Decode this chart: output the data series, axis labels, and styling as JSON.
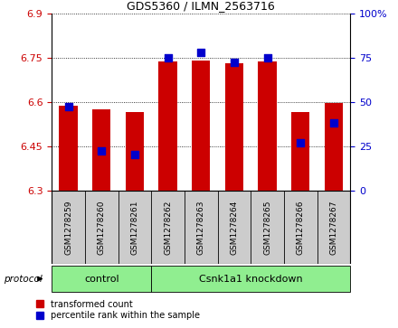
{
  "title": "GDS5360 / ILMN_2563716",
  "samples": [
    "GSM1278259",
    "GSM1278260",
    "GSM1278261",
    "GSM1278262",
    "GSM1278263",
    "GSM1278264",
    "GSM1278265",
    "GSM1278266",
    "GSM1278267"
  ],
  "transformed_counts": [
    6.585,
    6.575,
    6.565,
    6.735,
    6.74,
    6.73,
    6.735,
    6.565,
    6.595
  ],
  "percentile_ranks": [
    47,
    22,
    20,
    75,
    78,
    72,
    75,
    27,
    38
  ],
  "ylim_left": [
    6.3,
    6.9
  ],
  "ylim_right": [
    0,
    100
  ],
  "yticks_left": [
    6.3,
    6.45,
    6.6,
    6.75,
    6.9
  ],
  "yticks_right": [
    0,
    25,
    50,
    75,
    100
  ],
  "ytick_labels_left": [
    "6.3",
    "6.45",
    "6.6",
    "6.75",
    "6.9"
  ],
  "ytick_labels_right": [
    "0",
    "25",
    "50",
    "75",
    "100%"
  ],
  "bar_color": "#cc0000",
  "dot_color": "#0000cc",
  "bar_bottom": 6.3,
  "control_count": 3,
  "knockdown_count": 6,
  "control_label": "control",
  "knockdown_label": "Csnk1a1 knockdown",
  "group_color": "#90ee90",
  "protocol_label": "protocol",
  "legend_bar_label": "transformed count",
  "legend_dot_label": "percentile rank within the sample",
  "grid_color": "#000000",
  "background_color": "#ffffff",
  "tick_label_color_left": "#cc0000",
  "tick_label_color_right": "#0000cc",
  "bar_width": 0.55,
  "cell_bg": "#cccccc",
  "title_fontsize": 9,
  "axis_fontsize": 8,
  "label_fontsize": 6.5
}
